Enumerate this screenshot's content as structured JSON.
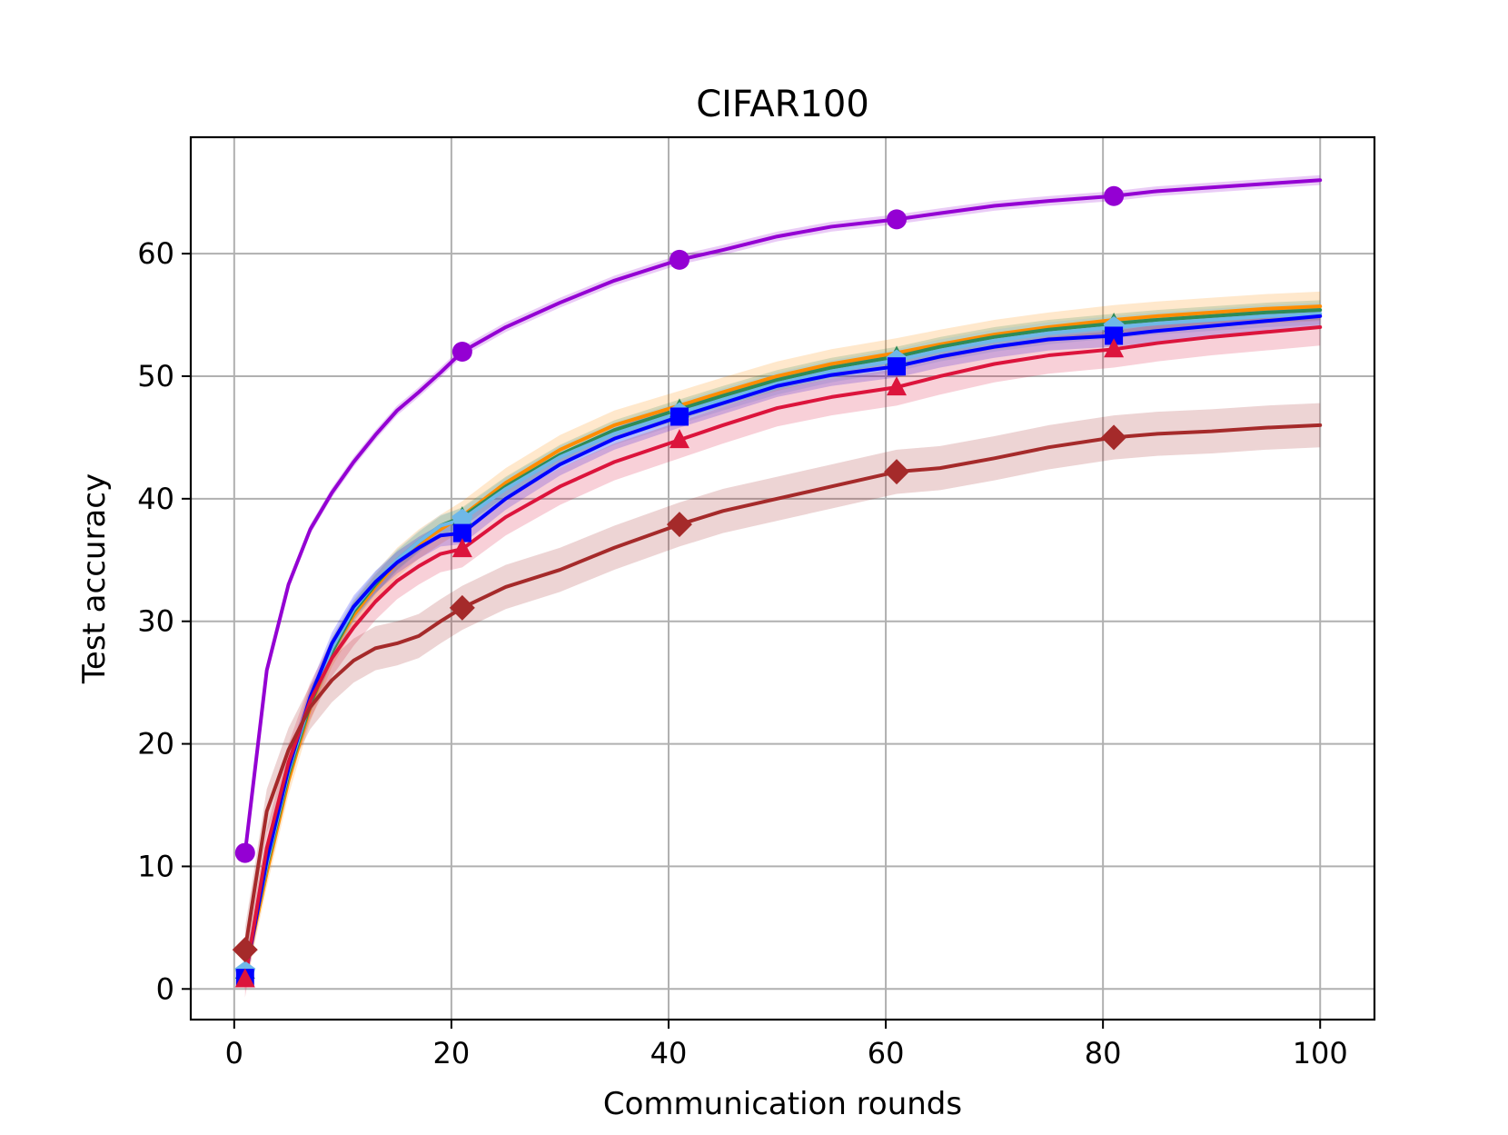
{
  "chart_data": {
    "type": "line",
    "title": "CIFAR100",
    "xlabel": "Communication rounds",
    "ylabel": "Test accuracy",
    "xlim": [
      -4,
      105
    ],
    "ylim": [
      -2.5,
      69.5
    ],
    "xticks": [
      0,
      20,
      40,
      60,
      80,
      100
    ],
    "yticks": [
      0,
      10,
      20,
      30,
      40,
      50,
      60
    ],
    "grid": true,
    "legend": "none",
    "x": [
      1,
      3,
      5,
      7,
      9,
      11,
      13,
      15,
      17,
      19,
      21,
      25,
      30,
      35,
      41,
      45,
      50,
      55,
      61,
      65,
      70,
      75,
      81,
      85,
      90,
      95,
      100
    ],
    "series": [
      {
        "color": "#9400d3",
        "marker": "circle",
        "values": [
          11.1,
          26.0,
          33.0,
          37.5,
          40.5,
          43.0,
          45.2,
          47.2,
          48.7,
          50.3,
          52.0,
          54.0,
          56.0,
          57.8,
          59.5,
          60.3,
          61.4,
          62.2,
          62.8,
          63.3,
          63.9,
          64.3,
          64.7,
          65.1,
          65.4,
          65.7,
          66.0
        ],
        "band": 0.4,
        "marker_x": [
          1,
          21,
          41,
          61,
          81
        ]
      },
      {
        "color": "#ff8c00",
        "marker": "none",
        "values": [
          1.2,
          9.5,
          17.0,
          23.0,
          27.5,
          30.5,
          32.8,
          34.8,
          36.3,
          37.5,
          38.6,
          41.3,
          44.0,
          46.0,
          47.6,
          48.7,
          50.0,
          51.0,
          51.9,
          52.6,
          53.4,
          54.0,
          54.6,
          54.9,
          55.2,
          55.5,
          55.7
        ],
        "band": 1.2,
        "marker_x": []
      },
      {
        "color": "#2e8b57",
        "marker": "triangle",
        "values": [
          1.5,
          10.0,
          17.5,
          23.2,
          27.5,
          30.8,
          33.0,
          35.0,
          36.5,
          37.8,
          38.5,
          41.0,
          43.6,
          45.6,
          47.3,
          48.4,
          49.7,
          50.7,
          51.6,
          52.4,
          53.2,
          53.8,
          54.3,
          54.6,
          54.9,
          55.2,
          55.4
        ],
        "band": 0.8,
        "marker_x": [
          1,
          21,
          41,
          61,
          81
        ]
      },
      {
        "color": "#6fb8e8",
        "marker": "pentagon",
        "values": [
          1.4,
          10.2,
          17.8,
          23.5,
          27.8,
          31.0,
          33.2,
          35.0,
          36.5,
          37.8,
          38.3,
          40.8,
          43.4,
          45.3,
          47.0,
          48.1,
          49.4,
          50.4,
          51.3,
          52.1,
          52.9,
          53.5,
          54.0,
          54.3,
          54.6,
          54.9,
          55.1
        ],
        "band": 0.9,
        "marker_x": [
          1,
          21,
          41,
          61,
          81
        ]
      },
      {
        "color": "#0000ff",
        "marker": "square",
        "values": [
          0.9,
          10.5,
          18.0,
          23.8,
          28.2,
          31.2,
          33.2,
          34.8,
          36.0,
          37.0,
          37.2,
          40.0,
          42.8,
          44.9,
          46.7,
          47.8,
          49.2,
          50.1,
          50.8,
          51.6,
          52.4,
          53.0,
          53.3,
          53.7,
          54.1,
          54.5,
          54.9
        ],
        "band": 0.9,
        "marker_x": [
          1,
          21,
          41,
          61,
          81
        ]
      },
      {
        "color": "#dc143c",
        "marker": "triangle",
        "values": [
          0.8,
          11.5,
          18.5,
          23.5,
          27.0,
          29.5,
          31.6,
          33.3,
          34.5,
          35.5,
          35.9,
          38.5,
          41.0,
          43.0,
          44.8,
          46.0,
          47.4,
          48.3,
          49.1,
          50.0,
          51.0,
          51.7,
          52.2,
          52.7,
          53.2,
          53.6,
          54.0
        ],
        "band": 1.5,
        "marker_x": [
          1,
          21,
          41,
          61,
          81
        ]
      },
      {
        "color": "#a52a2a",
        "marker": "diamond",
        "values": [
          3.2,
          14.5,
          19.5,
          23.0,
          25.2,
          26.8,
          27.8,
          28.2,
          28.8,
          30.0,
          31.1,
          32.8,
          34.2,
          36.0,
          37.9,
          39.0,
          40.0,
          41.0,
          42.2,
          42.5,
          43.3,
          44.2,
          45.0,
          45.3,
          45.5,
          45.8,
          46.0
        ],
        "band": 1.8,
        "marker_x": [
          1,
          21,
          41,
          61,
          81
        ]
      }
    ]
  }
}
